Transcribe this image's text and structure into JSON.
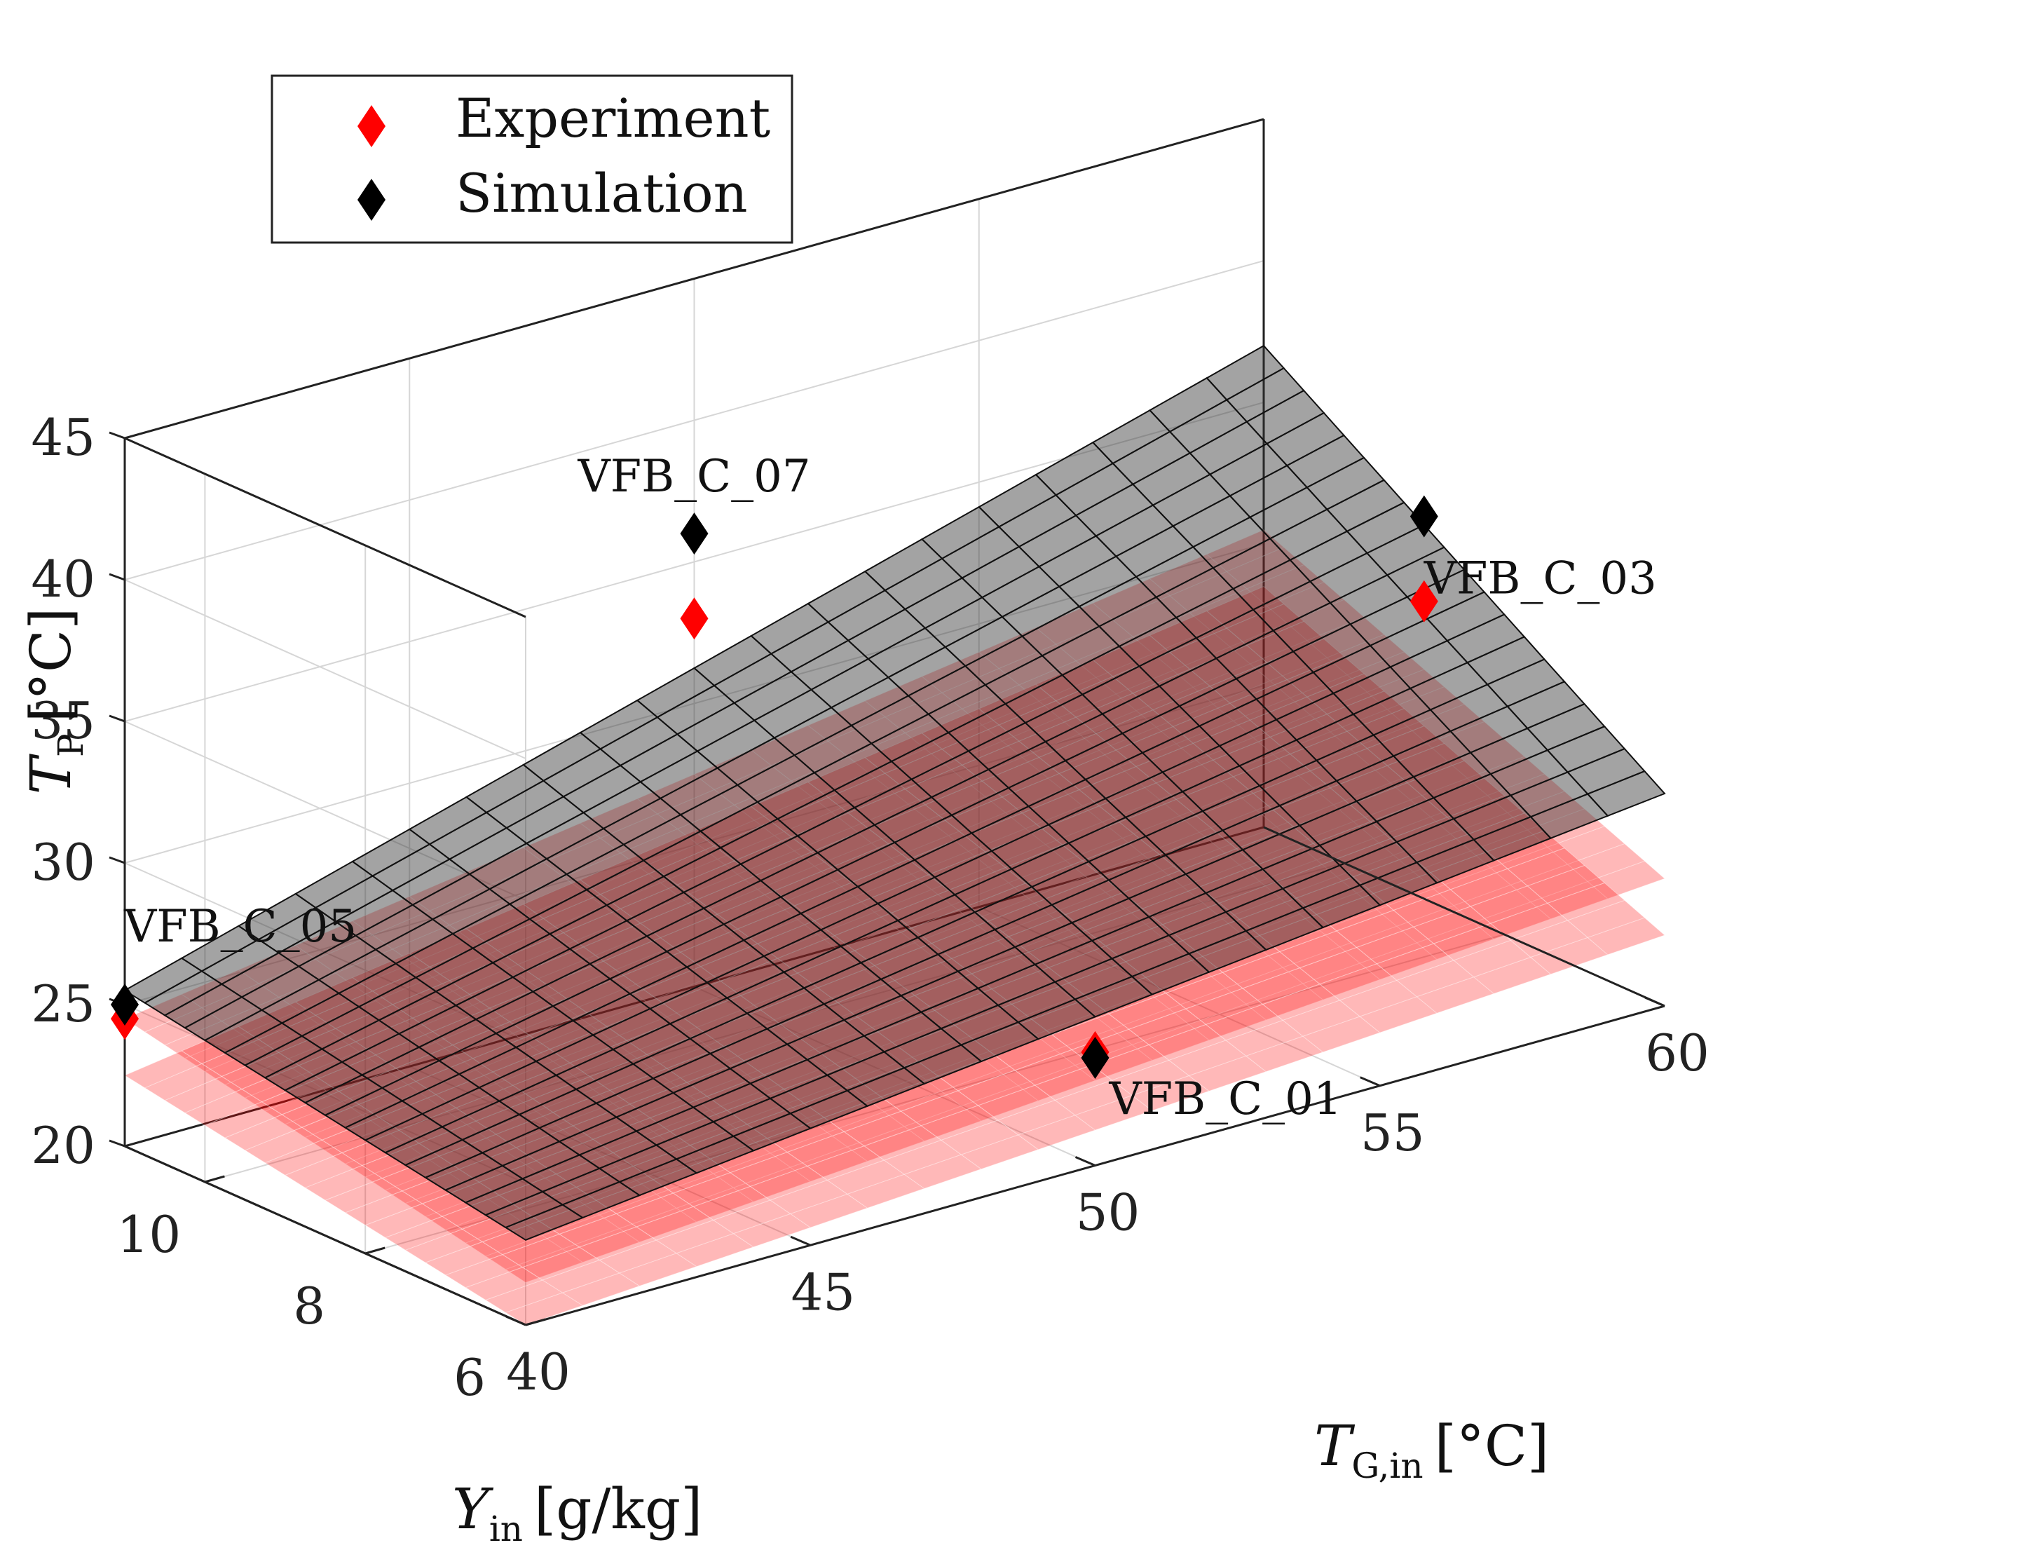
{
  "chart_data": {
    "type": "surface3d",
    "title": "",
    "x_axis": {
      "label_symbol": "T",
      "label_sub": "G,in",
      "label_unit": "[°C]",
      "range": [
        40,
        60
      ],
      "ticks": [
        40,
        45,
        50,
        55,
        60
      ],
      "tick_labels": [
        "40",
        "45",
        "50",
        "55",
        "60"
      ]
    },
    "y_axis": {
      "label_symbol": "Y",
      "label_sub": "in",
      "label_unit": "[g/kg]",
      "range": [
        6,
        11
      ],
      "ticks": [
        6,
        8,
        10
      ],
      "tick_labels": [
        "6",
        "8",
        "10"
      ]
    },
    "z_axis": {
      "label_symbol": "T",
      "label_sub": "P",
      "label_unit": "[°C]",
      "range": [
        20,
        45
      ],
      "ticks": [
        20,
        25,
        30,
        35,
        40,
        45
      ],
      "tick_labels": [
        "20",
        "25",
        "30",
        "35",
        "40",
        "45"
      ]
    },
    "legend": {
      "placement": "top-left",
      "entries": [
        {
          "label": "Experiment",
          "color": "#ff0000",
          "marker": "diamond"
        },
        {
          "label": "Simulation",
          "color": "#000000",
          "marker": "diamond"
        }
      ]
    },
    "series": [
      {
        "name": "Experiment",
        "color": "#ff0000",
        "points": [
          {
            "id": "VFB_C_01",
            "T_G_in": 50,
            "Y_in": 6,
            "T_P": 24.0
          },
          {
            "id": "VFB_C_03",
            "T_G_in": 60,
            "Y_in": 9,
            "T_P": 30.5
          },
          {
            "id": "VFB_C_05",
            "T_G_in": 40,
            "Y_in": 11,
            "T_P": 24.5
          },
          {
            "id": "VFB_C_07",
            "T_G_in": 50,
            "Y_in": 11,
            "T_P": 33.0
          }
        ]
      },
      {
        "name": "Simulation",
        "color": "#000000",
        "points": [
          {
            "id": "VFB_C_01",
            "T_G_in": 50,
            "Y_in": 6,
            "T_P": 23.8
          },
          {
            "id": "VFB_C_03",
            "T_G_in": 60,
            "Y_in": 9,
            "T_P": 33.5
          },
          {
            "id": "VFB_C_05",
            "T_G_in": 40,
            "Y_in": 11,
            "T_P": 25.0
          },
          {
            "id": "VFB_C_07",
            "T_G_in": 50,
            "Y_in": 11,
            "T_P": 36.0
          }
        ]
      }
    ],
    "surfaces": [
      {
        "name": "Experiment fit (upper)",
        "color": "#ff0000",
        "alpha": 0.4,
        "corners_TP": {
          "x40_y6": 21.5,
          "x60_y6": 24.5,
          "x40_y11": 24.5,
          "x60_y11": 30.5
        }
      },
      {
        "name": "Experiment fit (lower)",
        "color": "#ff0000",
        "alpha": 0.4,
        "corners_TP": {
          "x40_y6": 20.0,
          "x60_y6": 22.5,
          "x40_y11": 22.5,
          "x60_y11": 28.5
        }
      },
      {
        "name": "Simulation fit",
        "color": "#000000",
        "alpha": 0.5,
        "corners_TP": {
          "x40_y6": 23.0,
          "x60_y6": 27.5,
          "x40_y11": 25.5,
          "x60_y11": 37.0
        }
      }
    ],
    "grid": true
  }
}
